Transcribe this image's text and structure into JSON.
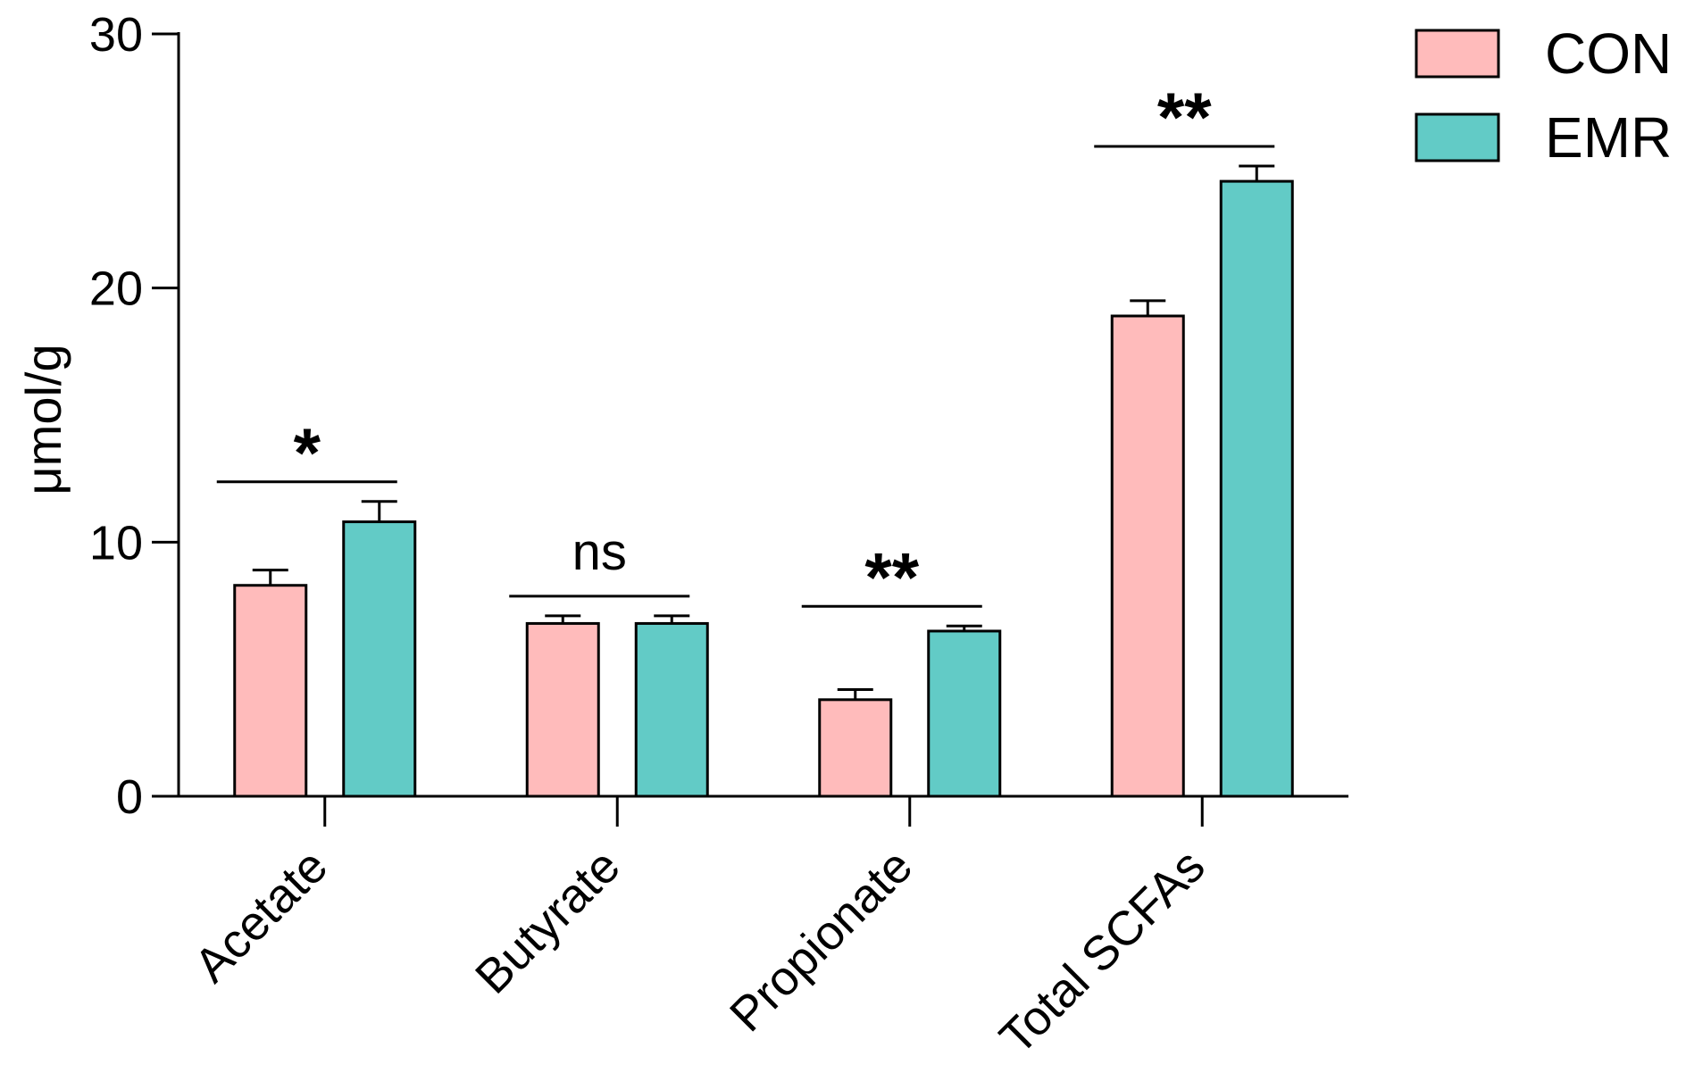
{
  "chart_data": {
    "type": "bar",
    "ylabel": "μmol/g",
    "xlabel": "",
    "ylim": [
      0,
      30
    ],
    "yticks": [
      "0",
      "10",
      "20",
      "30"
    ],
    "categories": [
      "Acetate",
      "Butyrate",
      "Propionate",
      "Total SCFAs"
    ],
    "series": [
      {
        "name": "CON",
        "color": "#FFBBBB",
        "values": [
          8.3,
          6.8,
          3.8,
          18.9
        ],
        "errors": [
          0.6,
          0.3,
          0.4,
          0.6
        ]
      },
      {
        "name": "EMR",
        "color": "#62CBC6",
        "values": [
          10.8,
          6.8,
          6.5,
          24.2
        ],
        "errors": [
          0.8,
          0.3,
          0.2,
          0.6
        ]
      }
    ],
    "significance": [
      "*",
      "ns",
      "**",
      "**"
    ],
    "legend_position": "top-right",
    "grid": false
  }
}
